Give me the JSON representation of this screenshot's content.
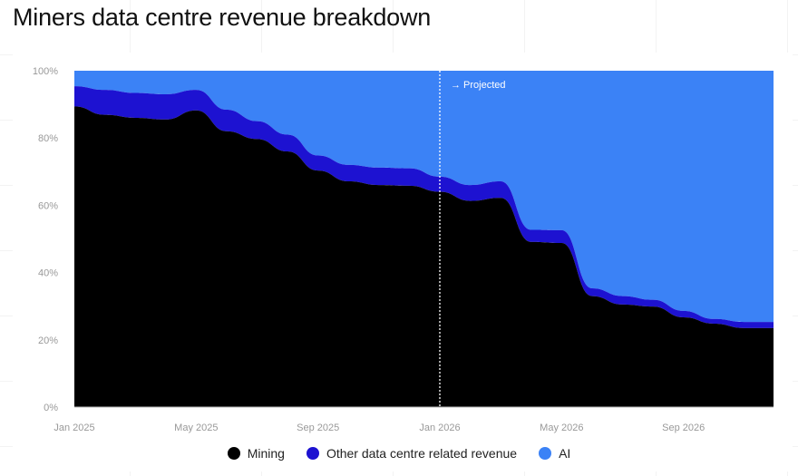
{
  "title": "Miners data centre revenue breakdown",
  "chart_data": {
    "type": "area",
    "stacked": true,
    "title": "Miners data centre revenue breakdown",
    "xlabel": "",
    "ylabel": "",
    "ylim": [
      0,
      100
    ],
    "y_ticks": [
      "0%",
      "20%",
      "40%",
      "60%",
      "80%",
      "100%"
    ],
    "x_ticks": [
      "Jan 2025",
      "May 2025",
      "Sep 2025",
      "Jan 2026",
      "May 2026",
      "Sep 2026"
    ],
    "x": [
      "2025-01",
      "2025-02",
      "2025-03",
      "2025-04",
      "2025-05",
      "2025-06",
      "2025-07",
      "2025-08",
      "2025-09",
      "2025-10",
      "2025-11",
      "2025-12",
      "2026-01",
      "2026-02",
      "2026-03",
      "2026-04",
      "2026-05",
      "2026-06",
      "2026-07",
      "2026-08",
      "2026-09",
      "2026-10",
      "2026-11",
      "2026-12"
    ],
    "series": [
      {
        "name": "Mining",
        "color": "#000000",
        "values": [
          89.4,
          86.9,
          86,
          85.5,
          88.2,
          82,
          79.7,
          76,
          70.3,
          67.1,
          66,
          65.8,
          64,
          61.3,
          62.2,
          49.1,
          48.8,
          33,
          30.5,
          29.9,
          26.7,
          24.8,
          23.5,
          23.5
        ]
      },
      {
        "name": "Other data centre related revenue",
        "color": "#1d12d1",
        "values": [
          6,
          7.4,
          7.4,
          7.5,
          6.1,
          6.4,
          5.3,
          5,
          4.5,
          4.9,
          5.2,
          5.2,
          4.5,
          4.7,
          4.9,
          3.6,
          3.8,
          2.3,
          2.5,
          2,
          1.9,
          1.4,
          1.8,
          1.8
        ]
      },
      {
        "name": "AI",
        "color": "#3b82f6",
        "values": [
          4.6,
          5.7,
          6.6,
          7,
          5.7,
          11.6,
          15,
          19,
          25.2,
          28,
          28.8,
          29,
          31.5,
          34,
          32.9,
          47.3,
          47.4,
          64.7,
          67,
          68.1,
          71.4,
          73.8,
          74.7,
          74.7
        ]
      }
    ],
    "annotation": {
      "label": "→ Projected",
      "x": "2026-01",
      "line_style": "dotted"
    },
    "grid": false,
    "legend_position": "bottom"
  }
}
